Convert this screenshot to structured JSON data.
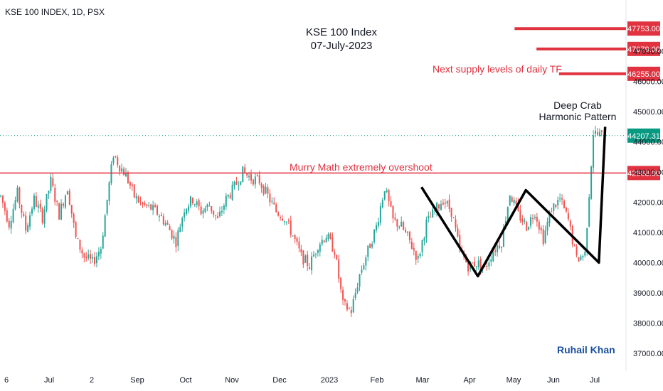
{
  "header": {
    "symbol_line": "KSE 100 INDEX, 1D, PSX",
    "title": "KSE 100 Index",
    "date": "07-July-2023"
  },
  "annotations": {
    "supply_text": "Next supply levels of daily TF",
    "murry_text": "Murry Math extremely overshoot",
    "pattern_line1": "Deep Crab",
    "pattern_line2": "Harmonic Pattern",
    "author": "Ruhail Khan"
  },
  "colors": {
    "up": "#26a69a",
    "down": "#ef5350",
    "level": "#e0323f",
    "pattern": "#000000",
    "last_price": "#089981"
  },
  "chart_data": {
    "type": "candlestick",
    "title": "KSE 100 Index",
    "subtitle": "07-July-2023",
    "ylim": [
      36500,
      48700
    ],
    "y_ticks": [
      37000,
      38000,
      39000,
      40000,
      41000,
      42000,
      43000,
      44000,
      45000,
      46000,
      47000
    ],
    "x_ticks": [
      "6",
      "Jul",
      "2",
      "Sep",
      "Oct",
      "Nov",
      "Dec",
      "2023",
      "Feb",
      "Mar",
      "Apr",
      "May",
      "Jun",
      "Jul"
    ],
    "horizontal_levels": [
      {
        "value": 47753.0,
        "label": "47753.00",
        "start_x_fraction": 0.822
      },
      {
        "value": 47079.0,
        "label": "47079.00",
        "start_x_fraction": 0.857
      },
      {
        "value": 46255.0,
        "label": "46255.00",
        "start_x_fraction": 0.893
      },
      {
        "value": 42968.0,
        "label": "42968.00",
        "start_x_fraction": 0.0
      }
    ],
    "last_price": {
      "value": 44207.31,
      "label": "44207.31"
    },
    "price_path": [
      [
        0,
        42200
      ],
      [
        4,
        41300
      ],
      [
        8,
        42300
      ],
      [
        12,
        41100
      ],
      [
        16,
        42100
      ],
      [
        20,
        41500
      ],
      [
        24,
        42700
      ],
      [
        28,
        41600
      ],
      [
        32,
        42500
      ],
      [
        36,
        40800
      ],
      [
        40,
        40200
      ],
      [
        44,
        40000
      ],
      [
        48,
        40500
      ],
      [
        52,
        42600
      ],
      [
        54,
        43600
      ],
      [
        57,
        43200
      ],
      [
        60,
        42900
      ],
      [
        64,
        42200
      ],
      [
        68,
        41900
      ],
      [
        72,
        41800
      ],
      [
        76,
        41600
      ],
      [
        80,
        41200
      ],
      [
        84,
        40700
      ],
      [
        88,
        41800
      ],
      [
        92,
        42100
      ],
      [
        96,
        41700
      ],
      [
        100,
        41900
      ],
      [
        104,
        41400
      ],
      [
        108,
        42100
      ],
      [
        112,
        42500
      ],
      [
        116,
        43000
      ],
      [
        120,
        42800
      ],
      [
        124,
        42700
      ],
      [
        128,
        42200
      ],
      [
        132,
        41700
      ],
      [
        136,
        41500
      ],
      [
        140,
        40900
      ],
      [
        144,
        40200
      ],
      [
        148,
        39900
      ],
      [
        152,
        40600
      ],
      [
        156,
        40900
      ],
      [
        160,
        40400
      ],
      [
        164,
        38600
      ],
      [
        168,
        38400
      ],
      [
        172,
        39600
      ],
      [
        176,
        40400
      ],
      [
        180,
        41200
      ],
      [
        184,
        42500
      ],
      [
        188,
        41400
      ],
      [
        192,
        41200
      ],
      [
        196,
        40700
      ],
      [
        200,
        40100
      ],
      [
        204,
        41300
      ],
      [
        208,
        41700
      ],
      [
        212,
        42100
      ],
      [
        216,
        41700
      ],
      [
        220,
        40400
      ],
      [
        224,
        39900
      ],
      [
        228,
        40000
      ],
      [
        232,
        39800
      ],
      [
        236,
        40400
      ],
      [
        240,
        40700
      ],
      [
        244,
        42300
      ],
      [
        248,
        41600
      ],
      [
        252,
        41200
      ],
      [
        256,
        41700
      ],
      [
        260,
        40800
      ],
      [
        264,
        41800
      ],
      [
        268,
        42100
      ],
      [
        272,
        41400
      ],
      [
        276,
        40100
      ],
      [
        280,
        40300
      ],
      [
        284,
        44300
      ],
      [
        288,
        44200
      ]
    ],
    "harmonic_pattern": {
      "name": "Deep Crab Harmonic Pattern",
      "points": [
        {
          "t": 202,
          "price": 42500
        },
        {
          "t": 229,
          "price": 39550
        },
        {
          "t": 252,
          "price": 42400
        },
        {
          "t": 287,
          "price": 40000
        },
        {
          "t": 290,
          "price": 44500
        }
      ]
    }
  }
}
